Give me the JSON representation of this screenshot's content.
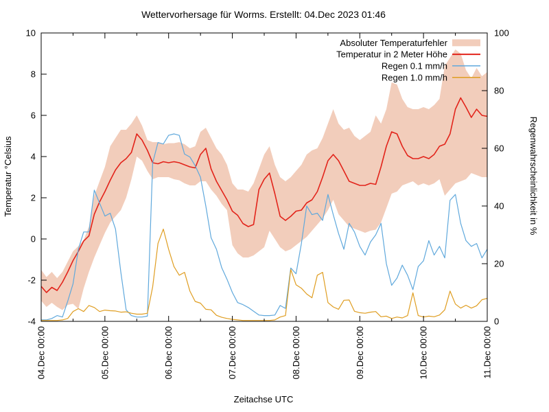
{
  "title": "Wettervorhersage für Worms. Erstellt: 04.Dec 2023 01:46",
  "axes": {
    "left": {
      "label": "Temperatur °Celsius",
      "ticks": [
        -4,
        -2,
        0,
        2,
        4,
        6,
        8,
        10
      ],
      "range": [
        -4,
        10
      ]
    },
    "right": {
      "label": "Regenwahrscheinlichkeit in %",
      "ticks": [
        0,
        20,
        40,
        60,
        80,
        100
      ],
      "range": [
        0,
        100
      ]
    },
    "x": {
      "label": "Zeitachse UTC",
      "tick_labels": [
        "04.Dec 00:00",
        "05.Dec 00:00",
        "06.Dec 00:00",
        "07.Dec 00:00",
        "08.Dec 00:00",
        "09.Dec 00:00",
        "10.Dec 00:00",
        "11.Dec 00:00"
      ]
    }
  },
  "legend": [
    {
      "label": "Absoluter Temperaturfehler",
      "sample": "band",
      "color": "#f2cdbb"
    },
    {
      "label": "Temperatur in 2 Meter Höhe",
      "sample": "line",
      "color": "#e2231a",
      "width": 2
    },
    {
      "label": "Regen 0.1 mm/h",
      "sample": "line",
      "color": "#5fa8dc",
      "width": 1.5
    },
    {
      "label": "Regen 1.0 mm/h",
      "sample": "line",
      "color": "#df9d20",
      "width": 1.5
    }
  ],
  "chart_data": {
    "type": "line",
    "x_unit": "hours since 04.Dec 00:00 UTC",
    "x_start": 0,
    "x_step": 2,
    "x_max": 168,
    "grid": false,
    "legend_position": "top-right-inside",
    "ylim_left": [
      -4,
      10
    ],
    "ylim_right": [
      0,
      100
    ],
    "band": {
      "name": "Absoluter Temperaturfehler",
      "axis": "left",
      "color": "#f2cdbb",
      "lo": [
        -3.0,
        -3.3,
        -3.1,
        -3.3,
        -3.45,
        -3.2,
        -3.15,
        -3.4,
        -2.4,
        -1.6,
        -0.9,
        -0.3,
        0.3,
        0.8,
        1.1,
        1.4,
        2.0,
        2.9,
        4.0,
        3.8,
        3.3,
        2.9,
        3.0,
        3.0,
        3.0,
        2.9,
        2.85,
        2.7,
        2.6,
        2.6,
        2.8,
        2.8,
        2.4,
        2.1,
        1.7,
        1.4,
        -0.3,
        -0.7,
        -0.9,
        -0.9,
        -0.8,
        -0.6,
        -0.4,
        0.4,
        0.0,
        -0.4,
        -0.6,
        -0.5,
        -0.3,
        -0.1,
        0.1,
        0.4,
        0.7,
        1.0,
        1.4,
        1.9,
        1.2,
        0.9,
        0.6,
        0.5,
        0.4,
        0.3,
        0.4,
        0.45,
        0.8,
        1.5,
        2.2,
        2.3,
        2.6,
        2.7,
        2.8,
        2.6,
        2.7,
        2.6,
        2.7,
        2.9,
        2.1,
        2.4,
        2.7,
        2.8,
        2.9,
        3.2,
        3.1,
        3.0,
        3.0
      ],
      "hi": [
        -1.5,
        -1.85,
        -1.6,
        -1.9,
        -1.6,
        -1.1,
        -0.6,
        -0.35,
        -0.05,
        0.6,
        2.1,
        2.8,
        3.5,
        4.5,
        4.9,
        5.3,
        5.3,
        5.6,
        6.0,
        5.5,
        4.8,
        4.7,
        4.7,
        4.6,
        4.65,
        4.65,
        4.7,
        4.6,
        4.4,
        4.5,
        5.2,
        5.4,
        4.9,
        4.4,
        4.1,
        3.6,
        2.7,
        2.4,
        2.4,
        2.3,
        2.7,
        3.4,
        4.1,
        4.5,
        3.6,
        3.0,
        2.8,
        3.0,
        3.3,
        3.6,
        4.1,
        4.3,
        4.4,
        4.9,
        5.6,
        6.3,
        5.6,
        5.3,
        5.4,
        5.0,
        4.8,
        5.0,
        5.2,
        6.0,
        5.6,
        6.3,
        7.6,
        7.5,
        6.8,
        6.4,
        6.3,
        6.3,
        6.4,
        6.3,
        6.5,
        6.8,
        8.4,
        8.8,
        9.2,
        9.0,
        8.2,
        7.8,
        8.3,
        7.9,
        8.1
      ]
    },
    "series": [
      {
        "name": "Temperatur in 2 Meter Höhe",
        "axis": "left",
        "color": "#e2231a",
        "width": 1.6,
        "values": [
          -2.3,
          -2.6,
          -2.35,
          -2.5,
          -2.1,
          -1.6,
          -1.05,
          -0.6,
          -0.1,
          0.15,
          1.2,
          1.8,
          2.3,
          2.85,
          3.35,
          3.7,
          3.9,
          4.2,
          5.1,
          4.8,
          4.3,
          3.7,
          3.65,
          3.75,
          3.7,
          3.75,
          3.7,
          3.6,
          3.5,
          3.45,
          4.1,
          4.4,
          3.4,
          2.8,
          2.35,
          1.9,
          1.35,
          1.15,
          0.75,
          0.6,
          0.7,
          2.4,
          2.9,
          3.2,
          2.2,
          1.1,
          0.9,
          1.1,
          1.35,
          1.4,
          1.75,
          1.9,
          2.3,
          3.0,
          3.8,
          4.1,
          3.8,
          3.3,
          2.8,
          2.7,
          2.6,
          2.6,
          2.7,
          2.65,
          3.5,
          4.5,
          5.2,
          5.1,
          4.5,
          4.05,
          3.9,
          3.9,
          4.0,
          3.9,
          4.1,
          4.5,
          4.6,
          5.1,
          6.3,
          6.85,
          6.4,
          5.9,
          6.3,
          6.0,
          5.95
        ]
      },
      {
        "name": "Regen 0.1 mm/h",
        "axis": "right",
        "color": "#5fa8dc",
        "width": 1.2,
        "values": [
          0.5,
          0.5,
          1.0,
          2.0,
          1.5,
          7,
          13,
          25,
          31,
          31,
          45.5,
          41,
          36.5,
          37.5,
          32,
          17,
          4,
          2,
          1.5,
          1.5,
          1.8,
          55,
          62,
          61.5,
          64.5,
          65,
          64.5,
          58,
          57,
          54,
          50,
          40,
          29,
          25,
          18.6,
          14.6,
          10,
          6.5,
          5.8,
          4.8,
          3.5,
          2.2,
          2,
          2,
          2.2,
          5.5,
          4.5,
          18.5,
          16.5,
          27,
          40,
          37,
          37.5,
          35,
          44,
          37,
          30.5,
          25,
          34,
          31,
          26,
          23,
          27.5,
          30,
          34,
          20,
          12.5,
          15,
          19.5,
          16,
          11,
          19,
          21,
          28,
          23,
          26,
          22,
          42,
          44,
          34,
          28,
          26,
          27,
          22,
          25
        ]
      },
      {
        "name": "Regen 1.0 mm/h",
        "axis": "right",
        "color": "#df9d20",
        "width": 1.2,
        "values": [
          0.3,
          0.3,
          0.3,
          0.3,
          0.5,
          1,
          3.4,
          4.4,
          3.4,
          5.5,
          4.8,
          3.4,
          3.9,
          3.7,
          3.6,
          3.2,
          3.3,
          2.8,
          2.5,
          2.5,
          2.8,
          12,
          27,
          32,
          25,
          19,
          16,
          17,
          10.5,
          6.9,
          6.3,
          4.2,
          4.0,
          2.1,
          1.4,
          1.0,
          0.7,
          0.5,
          0.3,
          0.3,
          0.3,
          0.3,
          0.3,
          0.3,
          0.5,
          1.5,
          2,
          18,
          12.7,
          11.5,
          9.5,
          8.2,
          16,
          17,
          6.5,
          5,
          4.2,
          7.3,
          7.4,
          3.5,
          3,
          2.8,
          3.2,
          3.4,
          1.6,
          1.8,
          1.0,
          1.5,
          1.2,
          2,
          9.9,
          2,
          1.5,
          1.8,
          1.6,
          2.2,
          4,
          10.5,
          6,
          4.6,
          5.6,
          4.6,
          5.4,
          7.5,
          8
        ]
      }
    ]
  }
}
